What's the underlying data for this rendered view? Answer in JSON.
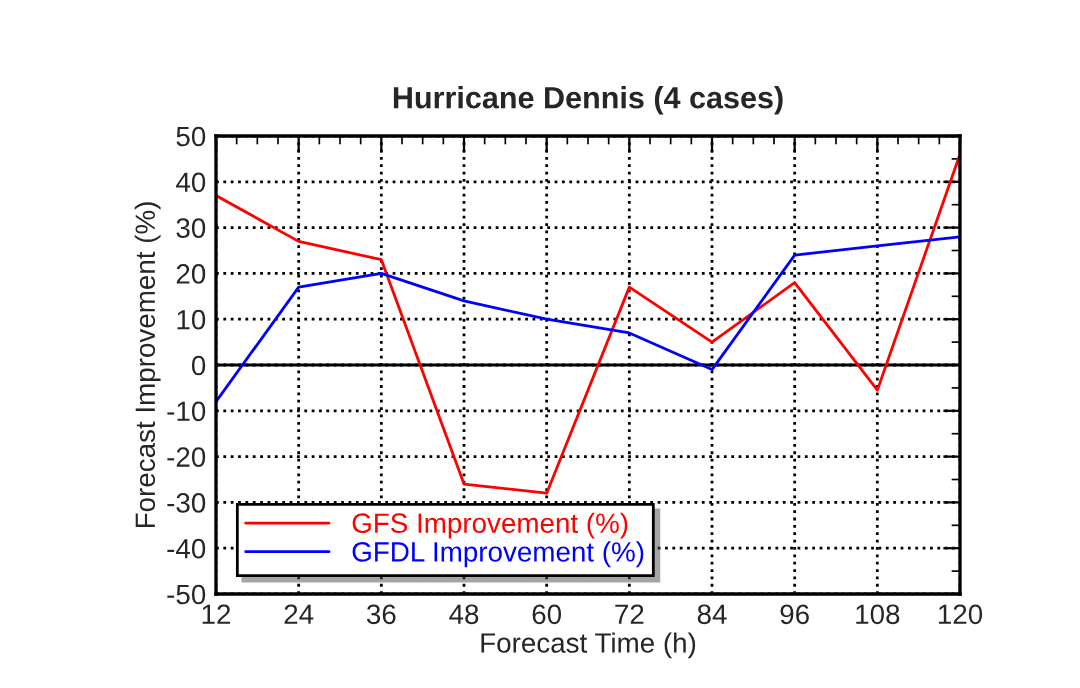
{
  "chart_data": {
    "type": "line",
    "title": "Hurricane Dennis (4 cases)",
    "xlabel": "Forecast Time (h)",
    "ylabel": "Forecast Improvement (%)",
    "x": [
      12,
      24,
      36,
      48,
      60,
      72,
      84,
      96,
      108,
      120
    ],
    "series": [
      {
        "name": "GFS Improvement (%)",
        "color": "#ff0000",
        "values": [
          37,
          27,
          23,
          -26,
          -28,
          17,
          5,
          18,
          -5.5,
          46
        ]
      },
      {
        "name": "GFDL Improvement (%)",
        "color": "#0000ff",
        "values": [
          -8,
          17,
          20,
          14,
          10,
          7,
          -1,
          24,
          26,
          28
        ]
      }
    ],
    "xlim": [
      12,
      120
    ],
    "xticks": [
      12,
      24,
      36,
      48,
      60,
      72,
      84,
      96,
      108,
      120
    ],
    "ylim": [
      -50,
      50
    ],
    "yticks": [
      -50,
      -40,
      -30,
      -20,
      -10,
      0,
      10,
      20,
      30,
      40,
      50
    ],
    "ref_lines": [
      {
        "axis": "y",
        "value": 0,
        "color": "#000000",
        "line_style": "solid"
      }
    ],
    "grid": true,
    "legend": "bottom left",
    "marker": "none",
    "line_style": "solid"
  }
}
